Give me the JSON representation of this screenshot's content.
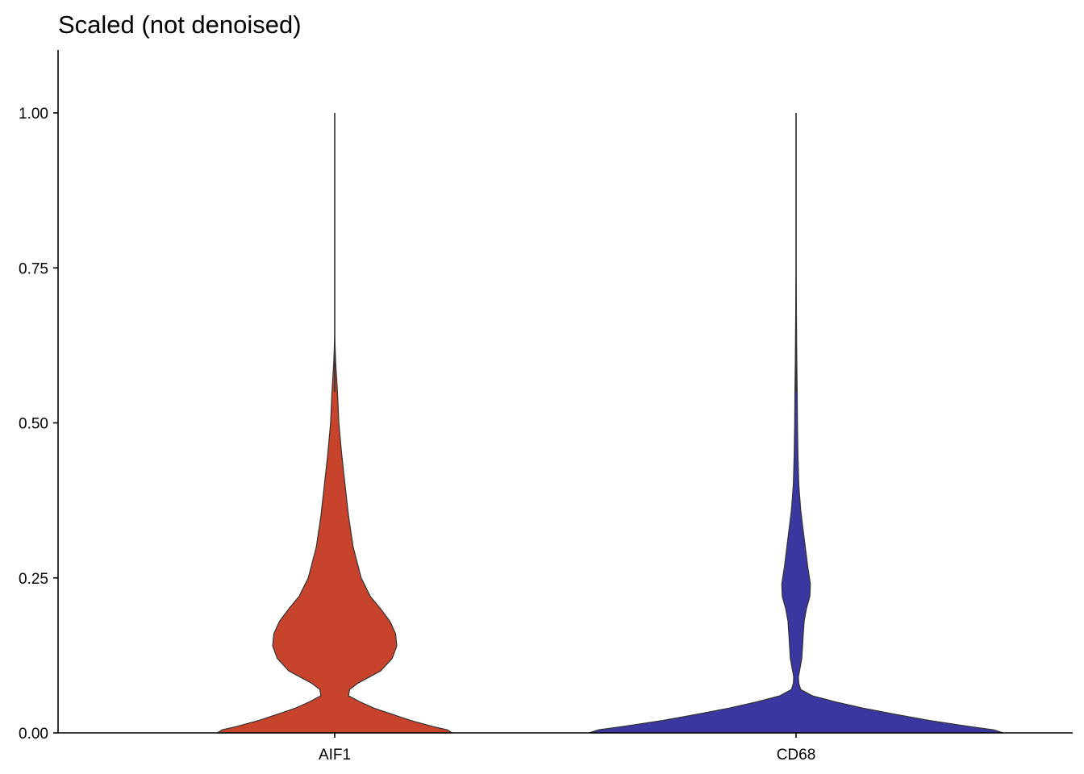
{
  "chart_data": {
    "type": "violin",
    "title": "Scaled (not denoised)",
    "xlabel": "",
    "ylabel": "",
    "categories": [
      "AIF1",
      "CD68"
    ],
    "ylim": [
      0,
      1.1
    ],
    "yticks": [
      0,
      0.25,
      0.5,
      0.75,
      1.0
    ],
    "ytick_labels": [
      "0.00",
      "0.25",
      "0.50",
      "0.75",
      "1.00"
    ],
    "grid": false,
    "legend": "none",
    "series": [
      {
        "category": "AIF1",
        "color": "#C7432B",
        "max": 1.0,
        "density": [
          [
            0.0,
            0.51
          ],
          [
            0.005,
            0.49
          ],
          [
            0.01,
            0.43
          ],
          [
            0.02,
            0.33
          ],
          [
            0.03,
            0.25
          ],
          [
            0.04,
            0.17
          ],
          [
            0.05,
            0.11
          ],
          [
            0.06,
            0.06
          ],
          [
            0.07,
            0.065
          ],
          [
            0.08,
            0.1
          ],
          [
            0.09,
            0.15
          ],
          [
            0.1,
            0.2
          ],
          [
            0.12,
            0.25
          ],
          [
            0.14,
            0.27
          ],
          [
            0.16,
            0.265
          ],
          [
            0.18,
            0.24
          ],
          [
            0.2,
            0.2
          ],
          [
            0.22,
            0.155
          ],
          [
            0.25,
            0.115
          ],
          [
            0.3,
            0.08
          ],
          [
            0.35,
            0.06
          ],
          [
            0.4,
            0.045
          ],
          [
            0.45,
            0.03
          ],
          [
            0.5,
            0.018
          ],
          [
            0.55,
            0.012
          ],
          [
            0.58,
            0.007
          ],
          [
            0.6,
            0.004
          ],
          [
            0.63,
            0.001
          ],
          [
            0.64,
            0.0
          ],
          [
            1.0,
            0.0
          ]
        ]
      },
      {
        "category": "CD68",
        "color": "#3A37A0",
        "max": 1.0,
        "density": [
          [
            0.0,
            0.9
          ],
          [
            0.005,
            0.86
          ],
          [
            0.01,
            0.76
          ],
          [
            0.02,
            0.58
          ],
          [
            0.03,
            0.43
          ],
          [
            0.04,
            0.29
          ],
          [
            0.05,
            0.17
          ],
          [
            0.06,
            0.07
          ],
          [
            0.07,
            0.02
          ],
          [
            0.08,
            0.012
          ],
          [
            0.09,
            0.01
          ],
          [
            0.1,
            0.015
          ],
          [
            0.12,
            0.025
          ],
          [
            0.15,
            0.03
          ],
          [
            0.18,
            0.035
          ],
          [
            0.2,
            0.045
          ],
          [
            0.22,
            0.06
          ],
          [
            0.24,
            0.062
          ],
          [
            0.27,
            0.05
          ],
          [
            0.3,
            0.04
          ],
          [
            0.33,
            0.03
          ],
          [
            0.36,
            0.02
          ],
          [
            0.4,
            0.012
          ],
          [
            0.45,
            0.008
          ],
          [
            0.5,
            0.006
          ],
          [
            0.55,
            0.005
          ],
          [
            0.6,
            0.003
          ],
          [
            0.65,
            0.002
          ],
          [
            0.7,
            0.001
          ],
          [
            0.75,
            0.0
          ],
          [
            1.0,
            0.0
          ]
        ]
      }
    ]
  }
}
